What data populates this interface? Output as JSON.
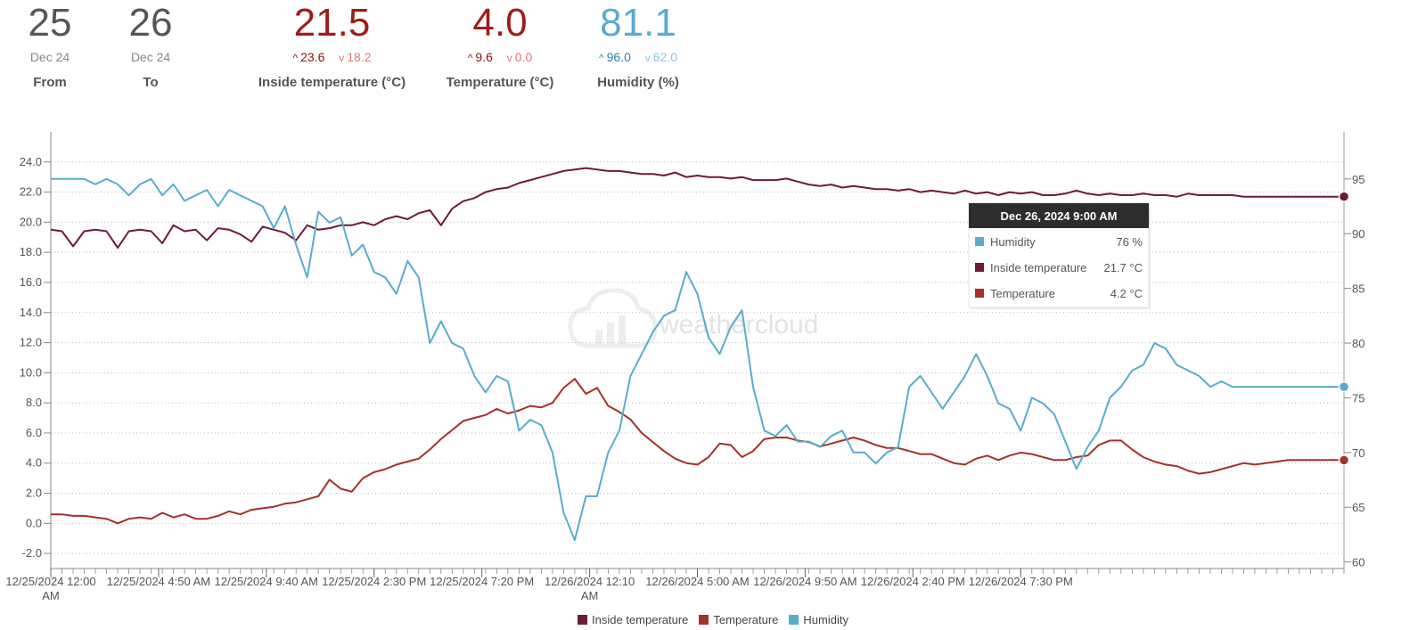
{
  "header": {
    "from": {
      "day": "25",
      "month": "Dec 24",
      "label": "From"
    },
    "to": {
      "day": "26",
      "month": "Dec 24",
      "label": "To"
    },
    "inside_temp": {
      "value": "21.5",
      "max": "23.6",
      "min": "18.2",
      "label": "Inside temperature (°C)",
      "color": "#a01c1c",
      "max_color": "#8a1010",
      "min_color": "#e07878"
    },
    "temp": {
      "value": "4.0",
      "max": "9.6",
      "min": "0.0",
      "label": "Temperature (°C)",
      "color": "#a01c1c",
      "max_color": "#8a1010",
      "min_color": "#e07878"
    },
    "humidity": {
      "value": "81.1",
      "max": "96.0",
      "min": "62.0",
      "label": "Humidity (%)",
      "color": "#5aaad0",
      "max_color": "#2e7fae",
      "min_color": "#8cc6e2"
    }
  },
  "watermark": "weathercloud",
  "tooltip": {
    "title": "Dec 26, 2024 9:00 AM",
    "rows": [
      {
        "name": "Humidity",
        "value": "76 %",
        "color": "#5aaccc"
      },
      {
        "name": "Inside temperature",
        "value": "21.7 °C",
        "color": "#6e1a3a"
      },
      {
        "name": "Temperature",
        "value": "4.2 °C",
        "color": "#a3322a"
      }
    ]
  },
  "legend": [
    {
      "name": "Inside temperature",
      "color": "#6e1a3a"
    },
    {
      "name": "Temperature",
      "color": "#a3322a"
    },
    {
      "name": "Humidity",
      "color": "#5aaccc"
    }
  ],
  "chart_data": {
    "type": "line",
    "x_start": "12/25/2024 12:00 AM",
    "x_end": "12/26/2024 9:00 AM",
    "x_step_hours": 0.5,
    "x_range_hours": [
      0,
      58
    ],
    "x_ticks": [
      {
        "hours": 0,
        "label": "12/25/2024 12:00",
        "label2": "AM"
      },
      {
        "hours": 4.833,
        "label": "12/25/2024 4:50 AM"
      },
      {
        "hours": 9.667,
        "label": "12/25/2024 9:40 AM"
      },
      {
        "hours": 14.5,
        "label": "12/25/2024 2:30 PM"
      },
      {
        "hours": 19.333,
        "label": "12/25/2024 7:20 PM"
      },
      {
        "hours": 24.167,
        "label": "12/26/2024 12:10",
        "label2": "AM"
      },
      {
        "hours": 29,
        "label": "12/26/2024 5:00 AM"
      },
      {
        "hours": 33.833,
        "label": "12/26/2024 9:50 AM"
      },
      {
        "hours": 38.667,
        "label": "12/26/2024 2:40 PM"
      },
      {
        "hours": 43.5,
        "label": "12/26/2024 7:30 PM"
      }
    ],
    "y_left": {
      "range": [
        -3,
        26
      ],
      "ticks": [
        "-2.0",
        "0.0",
        "2.0",
        "4.0",
        "6.0",
        "8.0",
        "10.0",
        "12.0",
        "14.0",
        "16.0",
        "18.0",
        "20.0",
        "22.0",
        "24.0"
      ]
    },
    "y_right": {
      "range": [
        59.4,
        99.3
      ],
      "ticks": [
        "60",
        "65",
        "70",
        "75",
        "80",
        "85",
        "90",
        "95"
      ]
    },
    "series": [
      {
        "name": "Inside temperature",
        "axis": "left",
        "color": "#6e1a3a",
        "values": [
          19.5,
          19.4,
          18.4,
          19.4,
          19.5,
          19.4,
          18.3,
          19.4,
          19.5,
          19.4,
          18.6,
          19.8,
          19.4,
          19.5,
          18.8,
          19.6,
          19.5,
          19.2,
          18.7,
          19.7,
          19.5,
          19.3,
          18.8,
          19.8,
          19.5,
          19.6,
          19.8,
          19.8,
          20.0,
          19.8,
          20.2,
          20.4,
          20.2,
          20.6,
          20.8,
          19.8,
          20.9,
          21.4,
          21.6,
          22.0,
          22.2,
          22.3,
          22.6,
          22.8,
          23.0,
          23.2,
          23.4,
          23.5,
          23.6,
          23.5,
          23.4,
          23.4,
          23.3,
          23.2,
          23.2,
          23.1,
          23.3,
          23.0,
          23.1,
          23.0,
          23.0,
          22.9,
          23.0,
          22.8,
          22.8,
          22.8,
          22.9,
          22.7,
          22.5,
          22.4,
          22.5,
          22.3,
          22.4,
          22.3,
          22.2,
          22.2,
          22.1,
          22.2,
          22.0,
          22.1,
          22.0,
          21.9,
          22.1,
          21.9,
          22.0,
          21.8,
          22.0,
          21.9,
          22.0,
          21.8,
          21.8,
          21.9,
          22.1,
          21.9,
          21.8,
          21.9,
          21.8,
          21.8,
          21.9,
          21.8,
          21.8,
          21.7,
          21.9,
          21.8,
          21.8,
          21.8,
          21.8,
          21.7,
          21.7,
          21.7,
          21.7,
          21.7,
          21.7,
          21.7,
          21.7,
          21.7,
          21.7
        ]
      },
      {
        "name": "Temperature",
        "axis": "left",
        "color": "#a3322a",
        "values": [
          0.6,
          0.6,
          0.5,
          0.5,
          0.4,
          0.3,
          0.0,
          0.3,
          0.4,
          0.3,
          0.7,
          0.4,
          0.6,
          0.3,
          0.3,
          0.5,
          0.8,
          0.6,
          0.9,
          1.0,
          1.1,
          1.3,
          1.4,
          1.6,
          1.8,
          2.9,
          2.3,
          2.1,
          3.0,
          3.4,
          3.6,
          3.9,
          4.1,
          4.3,
          4.9,
          5.6,
          6.2,
          6.8,
          7.0,
          7.2,
          7.6,
          7.3,
          7.5,
          7.8,
          7.7,
          8.0,
          9.0,
          9.6,
          8.6,
          9.0,
          7.8,
          7.4,
          6.9,
          6.0,
          5.4,
          4.8,
          4.3,
          4.0,
          3.9,
          4.4,
          5.3,
          5.2,
          4.4,
          4.8,
          5.6,
          5.7,
          5.7,
          5.5,
          5.4,
          5.1,
          5.3,
          5.5,
          5.7,
          5.5,
          5.2,
          5.0,
          5.0,
          4.8,
          4.6,
          4.6,
          4.3,
          4.0,
          3.9,
          4.3,
          4.5,
          4.2,
          4.5,
          4.7,
          4.6,
          4.4,
          4.2,
          4.2,
          4.4,
          4.5,
          5.2,
          5.5,
          5.5,
          4.9,
          4.4,
          4.1,
          3.9,
          3.8,
          3.5,
          3.3,
          3.4,
          3.6,
          3.8,
          4.0,
          3.9,
          4.0,
          4.1,
          4.2,
          4.2,
          4.2,
          4.2,
          4.2,
          4.2
        ]
      },
      {
        "name": "Humidity",
        "axis": "right",
        "color": "#5aaccc",
        "values": [
          95.0,
          95.0,
          95.0,
          95.0,
          94.5,
          95.0,
          94.5,
          93.5,
          94.5,
          95.0,
          93.5,
          94.5,
          93.0,
          93.5,
          94.0,
          92.5,
          94.0,
          93.5,
          93.0,
          92.5,
          90.5,
          92.5,
          89.0,
          86.0,
          92.0,
          91.0,
          91.5,
          88.0,
          89.0,
          86.5,
          86.0,
          84.5,
          87.5,
          86.0,
          80.0,
          82.0,
          80.0,
          79.5,
          77.0,
          75.5,
          77.0,
          76.5,
          72.0,
          73.0,
          72.5,
          70.0,
          64.5,
          62.0,
          66.0,
          66.0,
          70.0,
          72.0,
          77.0,
          79.0,
          81.0,
          82.5,
          83.0,
          86.5,
          84.5,
          80.5,
          79.0,
          81.5,
          83.0,
          76.0,
          72.0,
          71.5,
          72.5,
          71.0,
          71.0,
          70.5,
          71.5,
          72.0,
          70.0,
          70.0,
          69.0,
          70.0,
          70.5,
          76.0,
          77.0,
          75.5,
          74.0,
          75.5,
          77.0,
          79.0,
          77.0,
          74.5,
          74.0,
          72.0,
          75.0,
          74.5,
          73.5,
          71.0,
          68.5,
          70.5,
          72.0,
          75.0,
          76.0,
          77.5,
          78.0,
          80.0,
          79.5,
          78.0,
          77.5,
          77.0,
          76.0,
          76.5,
          76.0,
          76.0,
          76.0,
          76.0,
          76.0,
          76.0,
          76.0,
          76.0,
          76.0,
          76.0,
          76.0
        ]
      }
    ]
  }
}
